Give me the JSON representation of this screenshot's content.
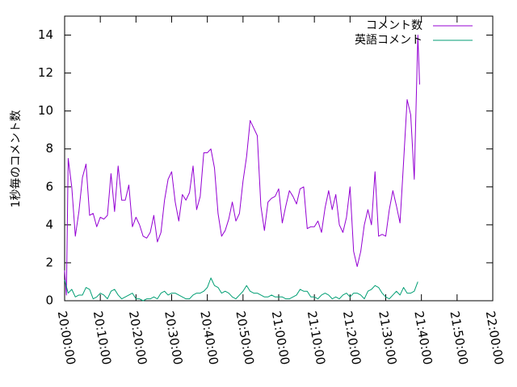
{
  "chart_data": {
    "type": "line",
    "title": "",
    "xlabel": "",
    "ylabel": "1秒毎のコメント数",
    "xlim": [
      "20:00:00",
      "22:00:00"
    ],
    "ylim": [
      0,
      15
    ],
    "x_ticks": [
      "20:00:00",
      "20:10:00",
      "20:20:00",
      "20:30:00",
      "20:40:00",
      "20:50:00",
      "21:00:00",
      "21:10:00",
      "21:20:00",
      "21:30:00",
      "21:40:00",
      "21:50:00",
      "22:00:00"
    ],
    "y_ticks": [
      "0",
      "2",
      "4",
      "6",
      "8",
      "10",
      "12",
      "14"
    ],
    "grid": false,
    "legend_position": "top-right",
    "series": [
      {
        "name": "コメント数",
        "color": "#9400d3",
        "points": [
          [
            "20:00:00",
            1.6
          ],
          [
            "20:00:30",
            0.3
          ],
          [
            "20:01:00",
            7.5
          ],
          [
            "20:02:00",
            6.0
          ],
          [
            "20:03:00",
            3.4
          ],
          [
            "20:04:00",
            4.7
          ],
          [
            "20:05:00",
            6.5
          ],
          [
            "20:06:00",
            7.2
          ],
          [
            "20:07:00",
            4.5
          ],
          [
            "20:08:00",
            4.6
          ],
          [
            "20:09:00",
            3.9
          ],
          [
            "20:10:00",
            4.4
          ],
          [
            "20:11:00",
            4.3
          ],
          [
            "20:12:00",
            4.5
          ],
          [
            "20:13:00",
            6.7
          ],
          [
            "20:14:00",
            4.7
          ],
          [
            "20:15:00",
            7.1
          ],
          [
            "20:16:00",
            5.3
          ],
          [
            "20:17:00",
            5.3
          ],
          [
            "20:18:00",
            6.1
          ],
          [
            "20:19:00",
            3.9
          ],
          [
            "20:20:00",
            4.4
          ],
          [
            "20:21:00",
            4.0
          ],
          [
            "20:22:00",
            3.4
          ],
          [
            "20:23:00",
            3.3
          ],
          [
            "20:24:00",
            3.6
          ],
          [
            "20:25:00",
            4.5
          ],
          [
            "20:26:00",
            3.1
          ],
          [
            "20:27:00",
            3.6
          ],
          [
            "20:28:00",
            5.3
          ],
          [
            "20:29:00",
            6.4
          ],
          [
            "20:30:00",
            6.8
          ],
          [
            "20:31:00",
            5.2
          ],
          [
            "20:32:00",
            4.2
          ],
          [
            "20:33:00",
            5.6
          ],
          [
            "20:34:00",
            5.3
          ],
          [
            "20:35:00",
            5.7
          ],
          [
            "20:36:00",
            7.1
          ],
          [
            "20:37:00",
            4.8
          ],
          [
            "20:38:00",
            5.5
          ],
          [
            "20:39:00",
            7.8
          ],
          [
            "20:40:00",
            7.8
          ],
          [
            "20:41:00",
            8.0
          ],
          [
            "20:42:00",
            7.0
          ],
          [
            "20:43:00",
            4.6
          ],
          [
            "20:44:00",
            3.4
          ],
          [
            "20:45:00",
            3.7
          ],
          [
            "20:46:00",
            4.3
          ],
          [
            "20:47:00",
            5.2
          ],
          [
            "20:48:00",
            4.2
          ],
          [
            "20:49:00",
            4.6
          ],
          [
            "20:50:00",
            6.3
          ],
          [
            "20:51:00",
            7.6
          ],
          [
            "20:52:00",
            9.5
          ],
          [
            "20:53:00",
            9.1
          ],
          [
            "20:54:00",
            8.7
          ],
          [
            "20:55:00",
            5.0
          ],
          [
            "20:56:00",
            3.7
          ],
          [
            "20:57:00",
            5.2
          ],
          [
            "20:58:00",
            5.4
          ],
          [
            "20:59:00",
            5.5
          ],
          [
            "21:00:00",
            5.9
          ],
          [
            "21:01:00",
            4.1
          ],
          [
            "21:02:00",
            5.0
          ],
          [
            "21:03:00",
            5.8
          ],
          [
            "21:04:00",
            5.5
          ],
          [
            "21:05:00",
            5.1
          ],
          [
            "21:06:00",
            5.9
          ],
          [
            "21:07:00",
            6.0
          ],
          [
            "21:08:00",
            3.8
          ],
          [
            "21:09:00",
            3.9
          ],
          [
            "21:10:00",
            3.9
          ],
          [
            "21:11:00",
            4.2
          ],
          [
            "21:12:00",
            3.6
          ],
          [
            "21:13:00",
            4.9
          ],
          [
            "21:14:00",
            5.8
          ],
          [
            "21:15:00",
            4.8
          ],
          [
            "21:16:00",
            5.6
          ],
          [
            "21:17:00",
            4.0
          ],
          [
            "21:18:00",
            3.6
          ],
          [
            "21:19:00",
            4.4
          ],
          [
            "21:20:00",
            6.0
          ],
          [
            "21:21:00",
            2.6
          ],
          [
            "21:22:00",
            1.8
          ],
          [
            "21:23:00",
            2.6
          ],
          [
            "21:24:00",
            4.0
          ],
          [
            "21:25:00",
            4.8
          ],
          [
            "21:26:00",
            4.0
          ],
          [
            "21:27:00",
            6.8
          ],
          [
            "21:28:00",
            3.4
          ],
          [
            "21:29:00",
            3.5
          ],
          [
            "21:30:00",
            3.4
          ],
          [
            "21:31:00",
            4.8
          ],
          [
            "21:32:00",
            5.8
          ],
          [
            "21:33:00",
            5.0
          ],
          [
            "21:34:00",
            4.1
          ],
          [
            "21:35:00",
            7.3
          ],
          [
            "21:36:00",
            10.6
          ],
          [
            "21:37:00",
            9.8
          ],
          [
            "21:38:00",
            6.4
          ],
          [
            "21:39:00",
            14.0
          ],
          [
            "21:39:30",
            11.4
          ]
        ]
      },
      {
        "name": "英語コメント",
        "color": "#009e73",
        "points": [
          [
            "20:00:00",
            1.1
          ],
          [
            "20:01:00",
            0.4
          ],
          [
            "20:02:00",
            0.6
          ],
          [
            "20:03:00",
            0.2
          ],
          [
            "20:04:00",
            0.3
          ],
          [
            "20:05:00",
            0.3
          ],
          [
            "20:06:00",
            0.7
          ],
          [
            "20:07:00",
            0.6
          ],
          [
            "20:08:00",
            0.1
          ],
          [
            "20:09:00",
            0.2
          ],
          [
            "20:10:00",
            0.4
          ],
          [
            "20:11:00",
            0.3
          ],
          [
            "20:12:00",
            0.1
          ],
          [
            "20:13:00",
            0.5
          ],
          [
            "20:14:00",
            0.6
          ],
          [
            "20:15:00",
            0.3
          ],
          [
            "20:16:00",
            0.1
          ],
          [
            "20:17:00",
            0.2
          ],
          [
            "20:18:00",
            0.3
          ],
          [
            "20:19:00",
            0.4
          ],
          [
            "20:20:00",
            0.1
          ],
          [
            "20:21:00",
            0.1
          ],
          [
            "20:22:00",
            0.0
          ],
          [
            "20:23:00",
            0.1
          ],
          [
            "20:24:00",
            0.1
          ],
          [
            "20:25:00",
            0.2
          ],
          [
            "20:26:00",
            0.1
          ],
          [
            "20:27:00",
            0.4
          ],
          [
            "20:28:00",
            0.5
          ],
          [
            "20:29:00",
            0.3
          ],
          [
            "20:30:00",
            0.4
          ],
          [
            "20:31:00",
            0.4
          ],
          [
            "20:32:00",
            0.3
          ],
          [
            "20:33:00",
            0.2
          ],
          [
            "20:34:00",
            0.1
          ],
          [
            "20:35:00",
            0.1
          ],
          [
            "20:36:00",
            0.3
          ],
          [
            "20:37:00",
            0.4
          ],
          [
            "20:38:00",
            0.4
          ],
          [
            "20:39:00",
            0.5
          ],
          [
            "20:40:00",
            0.7
          ],
          [
            "20:41:00",
            1.2
          ],
          [
            "20:42:00",
            0.8
          ],
          [
            "20:43:00",
            0.7
          ],
          [
            "20:44:00",
            0.4
          ],
          [
            "20:45:00",
            0.5
          ],
          [
            "20:46:00",
            0.4
          ],
          [
            "20:47:00",
            0.2
          ],
          [
            "20:48:00",
            0.1
          ],
          [
            "20:49:00",
            0.3
          ],
          [
            "20:50:00",
            0.5
          ],
          [
            "20:51:00",
            0.8
          ],
          [
            "20:52:00",
            0.5
          ],
          [
            "20:53:00",
            0.4
          ],
          [
            "20:54:00",
            0.4
          ],
          [
            "20:55:00",
            0.3
          ],
          [
            "20:56:00",
            0.2
          ],
          [
            "20:57:00",
            0.2
          ],
          [
            "20:58:00",
            0.3
          ],
          [
            "20:59:00",
            0.2
          ],
          [
            "21:00:00",
            0.2
          ],
          [
            "21:01:00",
            0.2
          ],
          [
            "21:02:00",
            0.1
          ],
          [
            "21:03:00",
            0.1
          ],
          [
            "21:04:00",
            0.2
          ],
          [
            "21:05:00",
            0.3
          ],
          [
            "21:06:00",
            0.6
          ],
          [
            "21:07:00",
            0.5
          ],
          [
            "21:08:00",
            0.5
          ],
          [
            "21:09:00",
            0.2
          ],
          [
            "21:10:00",
            0.2
          ],
          [
            "21:11:00",
            0.1
          ],
          [
            "21:12:00",
            0.3
          ],
          [
            "21:13:00",
            0.4
          ],
          [
            "21:14:00",
            0.3
          ],
          [
            "21:15:00",
            0.1
          ],
          [
            "21:16:00",
            0.2
          ],
          [
            "21:17:00",
            0.1
          ],
          [
            "21:18:00",
            0.3
          ],
          [
            "21:19:00",
            0.4
          ],
          [
            "21:20:00",
            0.2
          ],
          [
            "21:21:00",
            0.4
          ],
          [
            "21:22:00",
            0.4
          ],
          [
            "21:23:00",
            0.3
          ],
          [
            "21:24:00",
            0.1
          ],
          [
            "21:25:00",
            0.5
          ],
          [
            "21:26:00",
            0.6
          ],
          [
            "21:27:00",
            0.8
          ],
          [
            "21:28:00",
            0.7
          ],
          [
            "21:29:00",
            0.4
          ],
          [
            "21:30:00",
            0.2
          ],
          [
            "21:31:00",
            0.1
          ],
          [
            "21:32:00",
            0.3
          ],
          [
            "21:33:00",
            0.5
          ],
          [
            "21:34:00",
            0.3
          ],
          [
            "21:35:00",
            0.7
          ],
          [
            "21:36:00",
            0.4
          ],
          [
            "21:37:00",
            0.4
          ],
          [
            "21:38:00",
            0.5
          ],
          [
            "21:39:00",
            1.0
          ]
        ]
      }
    ]
  }
}
